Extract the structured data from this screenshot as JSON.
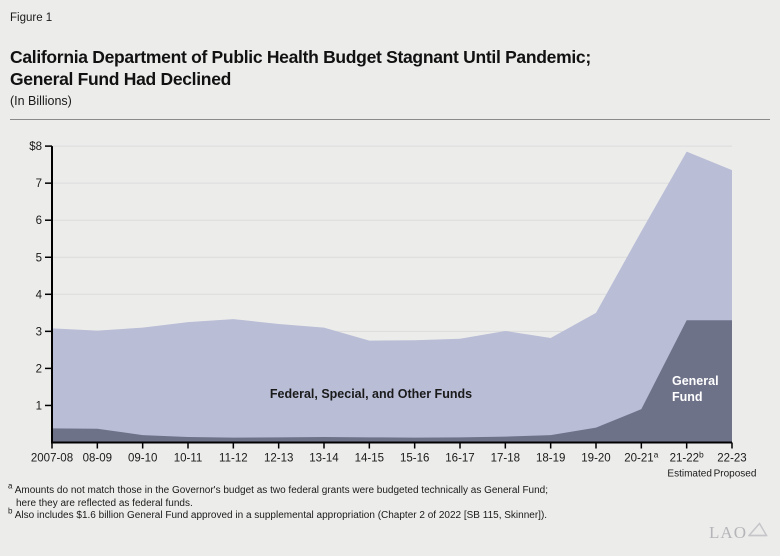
{
  "page": {
    "background": "#ececeb"
  },
  "header": {
    "figure_label": "Figure 1",
    "title_line1": "California Department of Public Health Budget Stagnant Until Pandemic;",
    "title_line2": "General Fund Had Declined",
    "subtitle": "(In Billions)"
  },
  "chart_data": {
    "type": "area",
    "stacked": true,
    "title": "California Department of Public Health Budget Stagnant Until Pandemic; General Fund Had Declined",
    "units_label": "(In Billions)",
    "categories": [
      "2007-08",
      "08-09",
      "09-10",
      "10-11",
      "11-12",
      "12-13",
      "13-14",
      "14-15",
      "15-16",
      "16-17",
      "17-18",
      "18-19",
      "19-20",
      "20-21",
      "21-22",
      "22-23"
    ],
    "category_superscripts": [
      "",
      "",
      "",
      "",
      "",
      "",
      "",
      "",
      "",
      "",
      "",
      "",
      "",
      "a",
      "b",
      ""
    ],
    "x_sublabels": [
      {
        "category_index": 14,
        "text": "Estimated"
      },
      {
        "category_index": 15,
        "text": "Proposed"
      }
    ],
    "series": [
      {
        "name": "General Fund",
        "color": "#6e7289",
        "values": [
          0.38,
          0.37,
          0.2,
          0.15,
          0.13,
          0.14,
          0.15,
          0.14,
          0.13,
          0.14,
          0.16,
          0.2,
          0.4,
          0.9,
          3.3,
          3.3
        ]
      },
      {
        "name": "Federal, Special, and Other Funds",
        "color": "#b9bdd6",
        "values": [
          2.7,
          2.65,
          2.9,
          3.1,
          3.2,
          3.06,
          2.95,
          2.61,
          2.63,
          2.66,
          2.85,
          2.62,
          3.1,
          4.8,
          4.55,
          4.05
        ]
      }
    ],
    "stacked_totals": [
      3.08,
      3.02,
      3.1,
      3.25,
      3.33,
      3.2,
      3.1,
      2.75,
      2.76,
      2.8,
      3.01,
      2.82,
      3.5,
      5.7,
      7.85,
      7.35
    ],
    "ylim": [
      0,
      8
    ],
    "ytick_labels": [
      "1",
      "2",
      "3",
      "4",
      "5",
      "6",
      "7",
      "$8"
    ],
    "grid": true,
    "legend": "labels-inside-areas",
    "area_labels": [
      {
        "text": "Federal, Special, and Other Funds",
        "color": "#1a1a1a"
      },
      {
        "text_line1": "General",
        "text_line2": "Fund",
        "color": "#ffffff"
      }
    ],
    "colors": {
      "grid": "#dcdcdc",
      "axis": "#000000",
      "background": "#ececeb"
    }
  },
  "footnotes": {
    "a": {
      "marker": "a",
      "line1": "Amounts do not match those in the Governor's budget as two federal grants were budgeted technically as General Fund;",
      "line2": "here they are reflected as federal funds."
    },
    "b": {
      "marker": "b",
      "line1": "Also includes $1.6 billion General Fund approved in a supplemental appropriation (Chapter 2 of 2022 [SB 115, Skinner])."
    }
  },
  "logo": {
    "text": "LAO"
  }
}
